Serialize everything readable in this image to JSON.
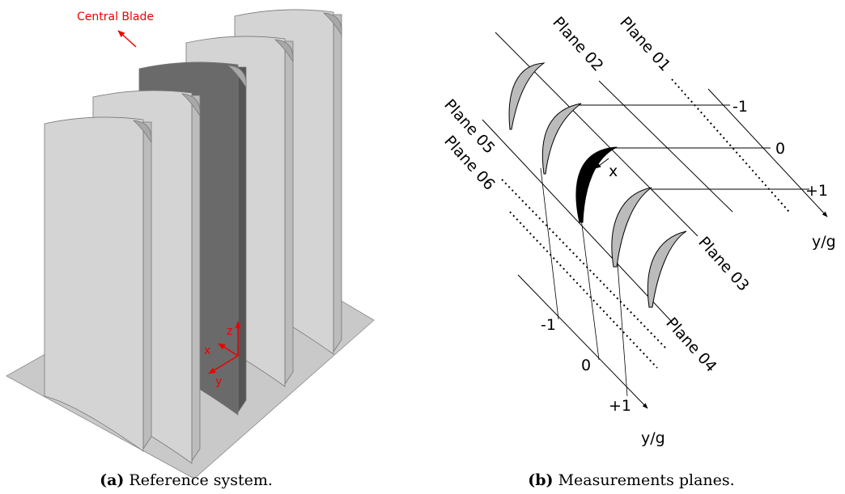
{
  "figure_a": {
    "annotation": "Central Blade",
    "axes": {
      "z": "z",
      "x": "x",
      "y": "y"
    },
    "caption": {
      "label": "(a)",
      "text": "Reference system."
    }
  },
  "figure_b": {
    "planes": [
      "Plane 01",
      "Plane 02",
      "Plane 03",
      "Plane 04",
      "Plane 05",
      "Plane 06"
    ],
    "upper_axis": {
      "ticks": [
        "-1",
        "0",
        "+1"
      ],
      "label": "y/g"
    },
    "lower_axis": {
      "ticks": [
        "-1",
        "0",
        "+1"
      ],
      "label": "y/g"
    },
    "x_label": "x",
    "caption": {
      "label": "(b)",
      "text": "Measurements planes."
    }
  }
}
